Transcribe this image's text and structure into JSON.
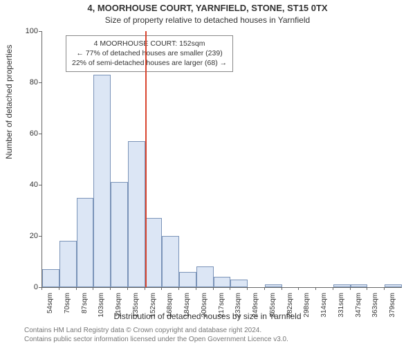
{
  "header": {
    "address": "4, MOORHOUSE COURT, YARNFIELD, STONE, ST15 0TX",
    "subtitle": "Size of property relative to detached houses in Yarnfield"
  },
  "chart": {
    "type": "histogram",
    "ylabel": "Number of detached properties",
    "xlabel": "Distribution of detached houses by size in Yarnfield",
    "ylim": [
      0,
      100
    ],
    "ytick_step": 20,
    "yticks": [
      0,
      20,
      40,
      60,
      80,
      100
    ],
    "xtick_labels": [
      "54sqm",
      "70sqm",
      "87sqm",
      "103sqm",
      "119sqm",
      "135sqm",
      "152sqm",
      "168sqm",
      "184sqm",
      "200sqm",
      "217sqm",
      "233sqm",
      "249sqm",
      "265sqm",
      "282sqm",
      "298sqm",
      "314sqm",
      "331sqm",
      "347sqm",
      "363sqm",
      "379sqm"
    ],
    "bar_values": [
      7,
      18,
      35,
      83,
      41,
      57,
      27,
      20,
      6,
      8,
      4,
      3,
      0,
      1,
      0,
      0,
      0,
      1,
      1,
      0,
      1
    ],
    "bar_fill": "#dce6f5",
    "bar_stroke": "#7a93b8",
    "marker_color": "#d9452e",
    "marker_bin_index": 6,
    "background_color": "#ffffff",
    "axis_color": "#666666",
    "label_fontsize": 12,
    "tick_fontsize": 11
  },
  "annotation": {
    "line1": "4 MOORHOUSE COURT: 152sqm",
    "line2": "← 77% of detached houses are smaller (239)",
    "line3": "22% of semi-detached houses are larger (68) →"
  },
  "footer": {
    "line1": "Contains HM Land Registry data © Crown copyright and database right 2024.",
    "line2": "Contains public sector information licensed under the Open Government Licence v3.0."
  }
}
